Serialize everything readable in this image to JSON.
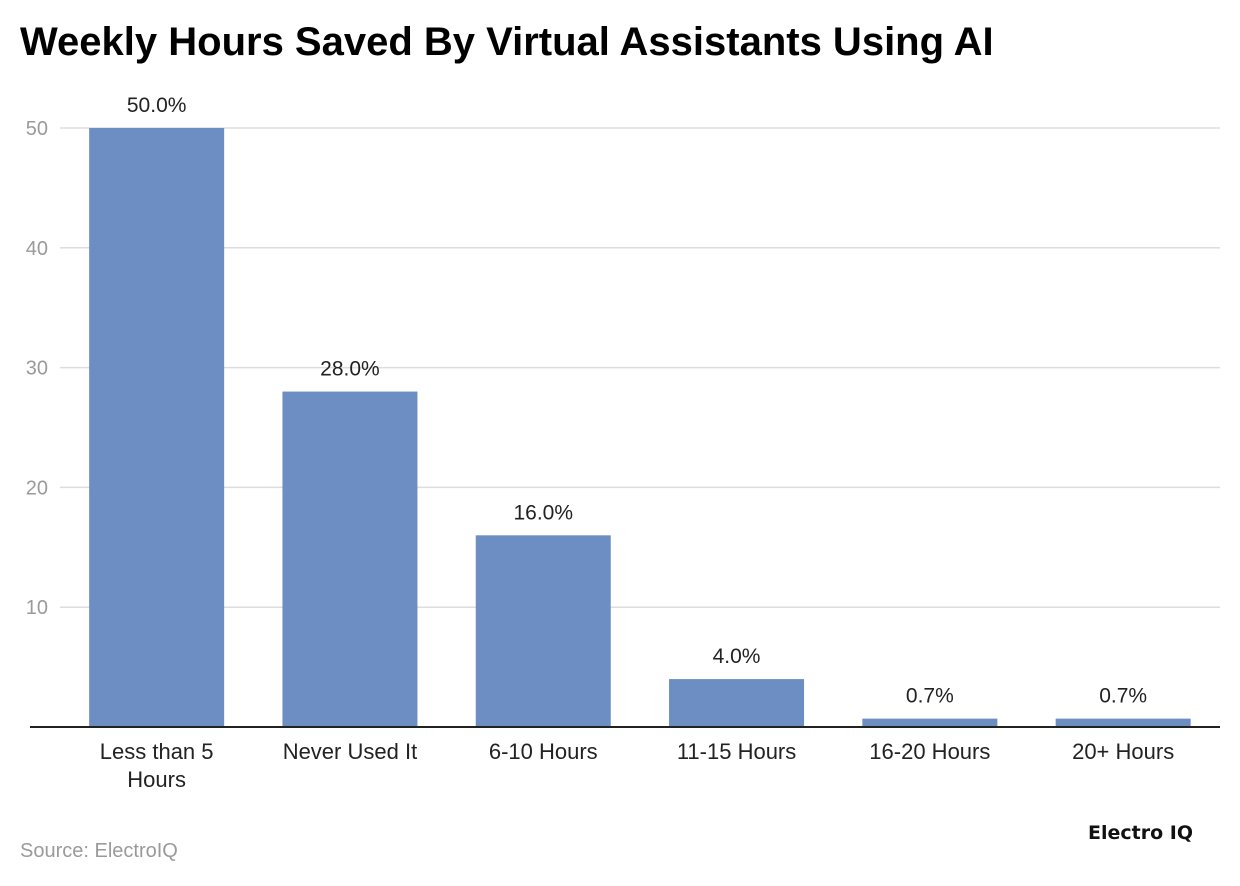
{
  "title": "Weekly Hours Saved By Virtual Assistants Using AI",
  "source": "Source: ElectroIQ",
  "brand": "Electro IQ",
  "colors": {
    "bar": "#6c8ec2",
    "grid": "#dddddd",
    "axis": "#222222",
    "tick": "#9a9a9a",
    "label": "#222222"
  },
  "chart_data": {
    "type": "bar",
    "title": "Weekly Hours Saved By Virtual Assistants Using AI",
    "categories": [
      [
        "Less than 5",
        "Hours"
      ],
      [
        "Never Used It"
      ],
      [
        "6-10 Hours"
      ],
      [
        "11-15 Hours"
      ],
      [
        "16-20 Hours"
      ],
      [
        "20+ Hours"
      ]
    ],
    "values": [
      50.0,
      28.0,
      16.0,
      4.0,
      0.7,
      0.7
    ],
    "value_labels": [
      "50.0%",
      "28.0%",
      "16.0%",
      "4.0%",
      "0.7%",
      "0.7%"
    ],
    "yticks": [
      10,
      20,
      30,
      40,
      50
    ],
    "ylim": [
      0,
      50
    ],
    "grid": true,
    "legend": "none"
  }
}
